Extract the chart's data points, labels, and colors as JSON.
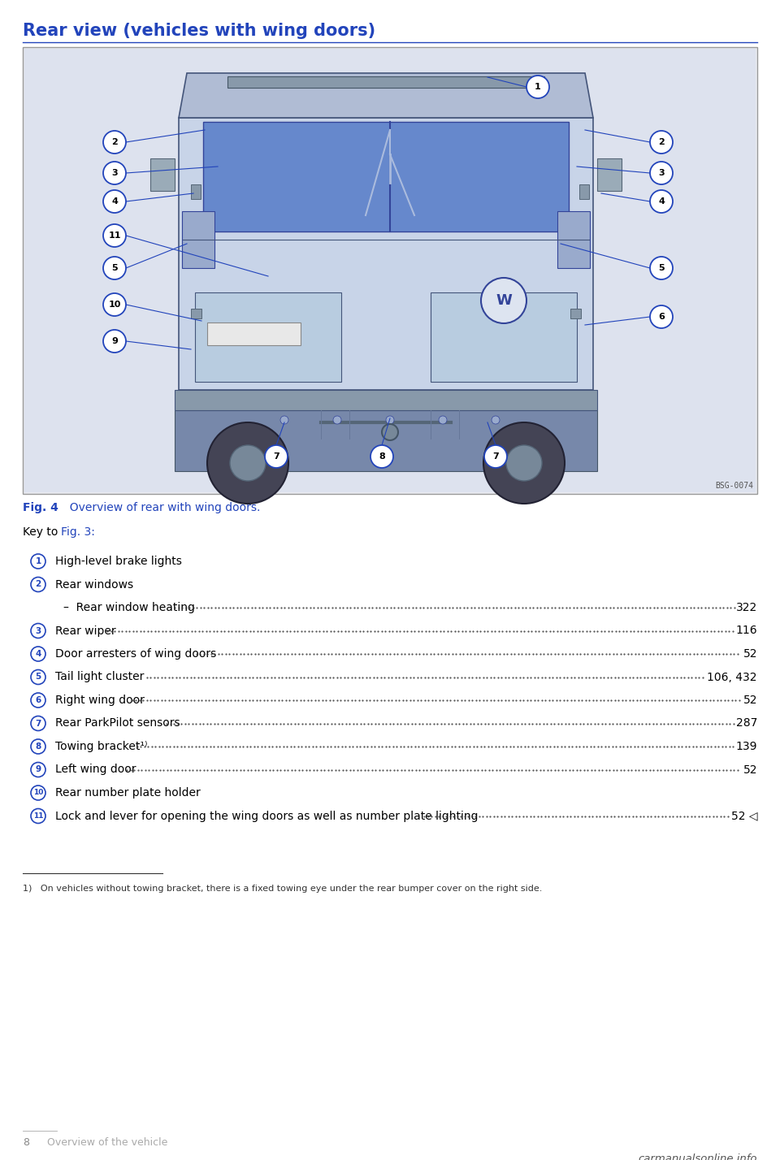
{
  "title": "Rear view (vehicles with wing doors)",
  "title_color": "#2244bb",
  "title_fontsize": 15,
  "fig_caption_bold": "Fig. 4",
  "fig_caption_rest": "  Overview of rear with wing doors.",
  "fig_caption_color": "#2244bb",
  "key_text": "Key to ",
  "key_fig_ref": "Fig. 3:",
  "key_fig_ref_color": "#2244bb",
  "bg_color": "#ffffff",
  "image_box_bg": "#e8eaf0",
  "image_box_border": "#aaaaaa",
  "van_body_color": "#cdd5e8",
  "van_outline_color": "#555566",
  "door_color": "#b0bcdc",
  "window_color": "#7090cc",
  "callout_border": "#2244bb",
  "callout_fill": "#ffffff",
  "callout_text": "#000000",
  "leader_color": "#2244bb",
  "items": [
    {
      "num": "1",
      "text": "High-level brake lights",
      "page": "",
      "has_dots": false,
      "no_num": false
    },
    {
      "num": "2",
      "text": "Rear windows",
      "page": "",
      "has_dots": false,
      "no_num": false
    },
    {
      "num": "",
      "text": "–  Rear window heating",
      "page": "322",
      "has_dots": true,
      "no_num": true
    },
    {
      "num": "3",
      "text": "Rear wiper",
      "page": "116",
      "has_dots": true,
      "no_num": false
    },
    {
      "num": "4",
      "text": "Door arresters of wing doors",
      "page": "52",
      "has_dots": true,
      "no_num": false
    },
    {
      "num": "5",
      "text": "Tail light cluster",
      "page": "106, 432",
      "has_dots": true,
      "no_num": false
    },
    {
      "num": "6",
      "text": "Right wing door",
      "page": "52",
      "has_dots": true,
      "no_num": false
    },
    {
      "num": "7",
      "text": "Rear ParkPilot sensors",
      "page": "287",
      "has_dots": true,
      "no_num": false
    },
    {
      "num": "8",
      "text": "Towing bracket¹⁾",
      "page": "139",
      "has_dots": true,
      "no_num": false
    },
    {
      "num": "9",
      "text": "Left wing door",
      "page": "52",
      "has_dots": true,
      "no_num": false
    },
    {
      "num": "10",
      "text": "Rear number plate holder",
      "page": "",
      "has_dots": false,
      "no_num": false
    },
    {
      "num": "11",
      "text": "Lock and lever for opening the wing doors as well as number plate lighting",
      "page": "52 ◁",
      "has_dots": true,
      "no_num": false
    }
  ],
  "footnote": "1)   On vehicles without towing bracket, there is a fixed towing eye under the rear bumper cover on the right side.",
  "page_number": "8",
  "page_section": "Overview of the vehicle",
  "watermark": "carmanualsonline.info",
  "bsg_code": "BSG-0074"
}
